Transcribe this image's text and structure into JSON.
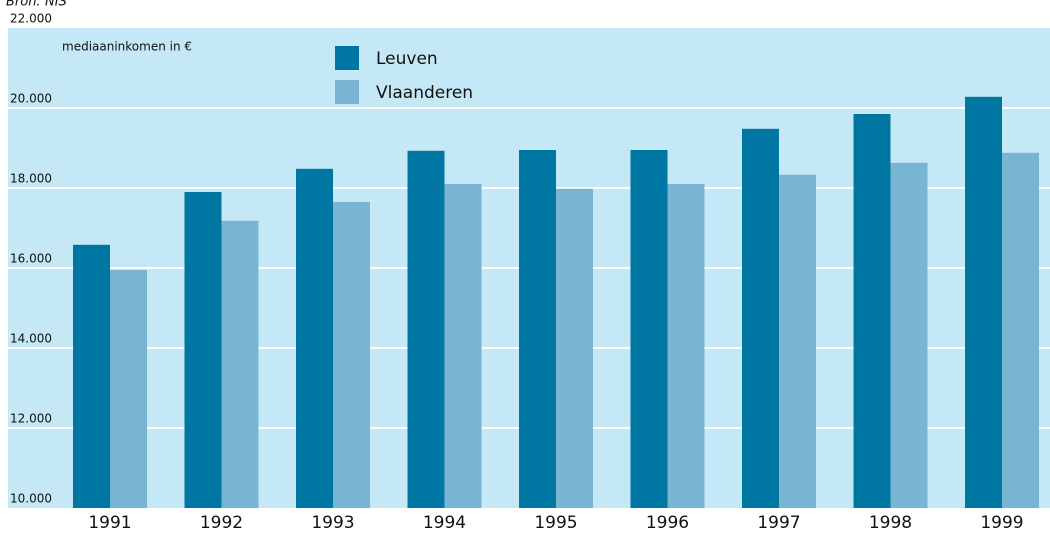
{
  "chart_data": {
    "type": "bar",
    "source": "Bron: NIS",
    "y_label": "mediaaninkomen in €",
    "categories": [
      "1991",
      "1992",
      "1993",
      "1994",
      "1995",
      "1996",
      "1997",
      "1998",
      "1999"
    ],
    "series": [
      {
        "name": "Leuven",
        "color": "#0077a3",
        "values": [
          16580,
          17900,
          18480,
          18930,
          18950,
          18950,
          19480,
          19850,
          20280
        ]
      },
      {
        "name": "Vlaanderen",
        "color": "#78b5d2",
        "values": [
          15950,
          17180,
          17650,
          18100,
          17980,
          18100,
          18330,
          18630,
          18880
        ]
      }
    ],
    "ylim": [
      10000,
      22000
    ],
    "yticks": [
      {
        "value": 10000,
        "label": "10.000"
      },
      {
        "value": 12000,
        "label": "12.000"
      },
      {
        "value": 14000,
        "label": "14.000"
      },
      {
        "value": 16000,
        "label": "16.000"
      },
      {
        "value": 18000,
        "label": "18.000"
      },
      {
        "value": 20000,
        "label": "20.000"
      },
      {
        "value": 22000,
        "label": "22.000"
      }
    ],
    "grid": true,
    "background": "#c5e8f7"
  }
}
